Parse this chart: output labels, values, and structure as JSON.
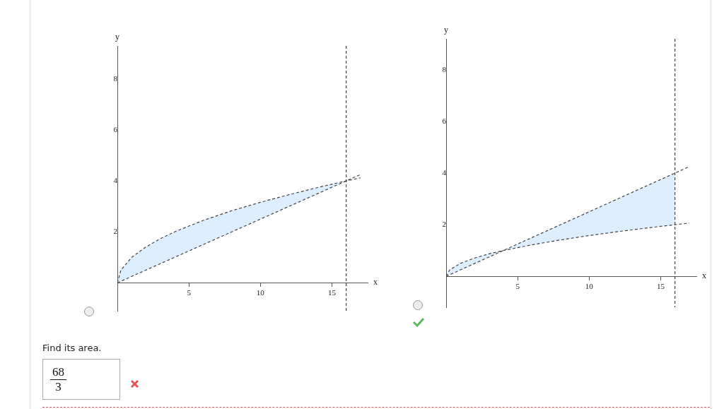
{
  "chart_data": [
    {
      "type": "line",
      "xlabel": "x",
      "ylabel": "y",
      "x": [
        0,
        0.25,
        1,
        2,
        3,
        4,
        6,
        8,
        10,
        12,
        14,
        16,
        17
      ],
      "xlim": [
        0,
        17.5
      ],
      "ylim": [
        -1.1,
        9.3
      ],
      "xticks": [
        5,
        10,
        15
      ],
      "yticks": [
        2,
        4,
        6,
        8
      ],
      "grid": false,
      "legend": false,
      "marker": "none",
      "line_style": "dashed",
      "series": [
        {
          "color": "#444444",
          "values": [
            0,
            0.5,
            1,
            1.41,
            1.73,
            2,
            2.45,
            2.83,
            3.16,
            3.46,
            3.74,
            4,
            4.12
          ],
          "upper": [
            0,
            0.5,
            1,
            1.41,
            1.73,
            2,
            2.45,
            2.83,
            3.16,
            3.46,
            3.74,
            4,
            null
          ],
          "lower": [
            0,
            0.06,
            0.25,
            0.5,
            0.75,
            1,
            1.5,
            2,
            2.5,
            3,
            3.5,
            4,
            null
          ]
        },
        {
          "color": "#444444",
          "values": [
            0,
            0.06,
            0.25,
            0.5,
            0.75,
            1,
            1.5,
            2,
            2.5,
            3,
            3.5,
            4,
            4.25
          ]
        }
      ],
      "ref_lines": [
        {
          "axis": "x",
          "value": 16,
          "color": "#444444",
          "line_style": "dashed"
        }
      ]
    },
    {
      "type": "line",
      "xlabel": "x",
      "ylabel": "y",
      "x": [
        0,
        0.25,
        1,
        2,
        3,
        4,
        6,
        8,
        10,
        12,
        14,
        16,
        17
      ],
      "xlim": [
        0,
        17.5
      ],
      "ylim": [
        -1.2,
        9.2
      ],
      "xticks": [
        5,
        10,
        15
      ],
      "yticks": [
        2,
        4,
        6,
        8
      ],
      "grid": false,
      "legend": false,
      "marker": "none",
      "line_style": "dashed",
      "series": [
        {
          "color": "#444444",
          "values": [
            0,
            0.25,
            0.5,
            0.71,
            0.87,
            1,
            1.22,
            1.41,
            1.58,
            1.73,
            1.87,
            2,
            2.06
          ]
        },
        {
          "color": "#444444",
          "values": [
            0,
            0.06,
            0.25,
            0.5,
            0.75,
            1,
            1.5,
            2,
            2.5,
            3,
            3.5,
            4,
            4.25
          ],
          "upper": [
            0,
            0.25,
            0.5,
            0.71,
            0.87,
            1,
            1.5,
            2,
            2.5,
            3,
            3.5,
            4,
            null
          ],
          "lower": [
            0,
            0.06,
            0.25,
            0.5,
            0.75,
            1,
            1.22,
            1.41,
            1.58,
            1.73,
            1.87,
            2,
            null
          ]
        }
      ],
      "ref_lines": [
        {
          "axis": "x",
          "value": 16,
          "color": "#444444",
          "line_style": "dashed"
        }
      ]
    },
    {
      "type": "other",
      "annotations": [
        "Find its area.",
        "68",
        "3"
      ]
    }
  ]
}
